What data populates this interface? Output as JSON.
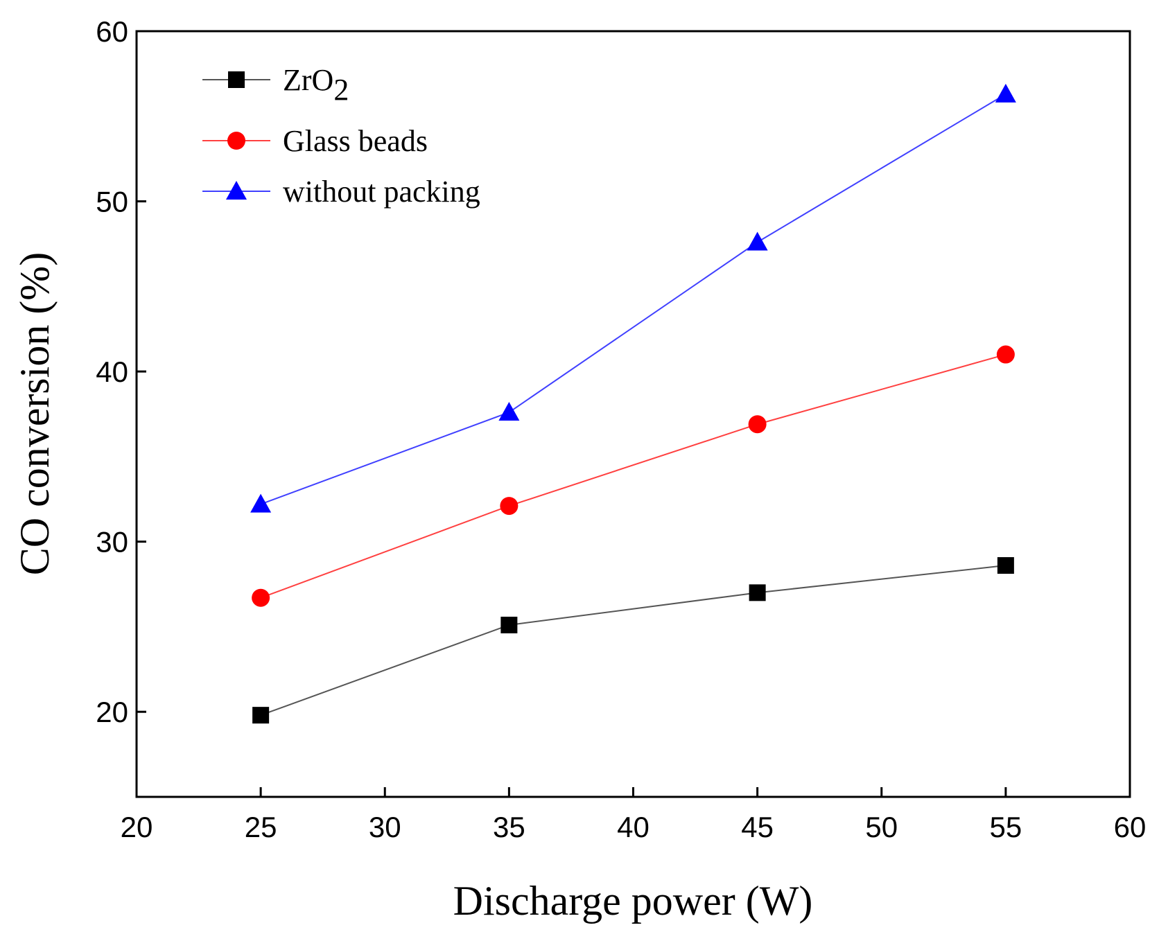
{
  "chart_data": {
    "type": "line",
    "title": "",
    "xlabel": "Discharge power (W)",
    "ylabel": "CO conversion (%)",
    "xlim": [
      20,
      60
    ],
    "ylim": [
      15,
      60
    ],
    "xticks": [
      20,
      25,
      30,
      35,
      40,
      45,
      50,
      55,
      60
    ],
    "yticks": [
      20,
      30,
      40,
      50,
      60
    ],
    "x": [
      25,
      35,
      45,
      55
    ],
    "legend_position": "top-left",
    "series": [
      {
        "name": "ZrO2",
        "name_main": "ZrO",
        "name_sub": "2",
        "marker": "square",
        "color": "#000000",
        "line_color": "#555555",
        "values": [
          19.8,
          25.1,
          27.0,
          28.6
        ]
      },
      {
        "name": "Glass beads",
        "marker": "circle",
        "color": "#ff0000",
        "line_color": "#ff4040",
        "values": [
          26.7,
          32.1,
          36.9,
          41.0
        ]
      },
      {
        "name": "without packing",
        "marker": "triangle",
        "color": "#0000ff",
        "line_color": "#4040ff",
        "values": [
          32.2,
          37.6,
          47.6,
          56.3
        ]
      }
    ]
  }
}
